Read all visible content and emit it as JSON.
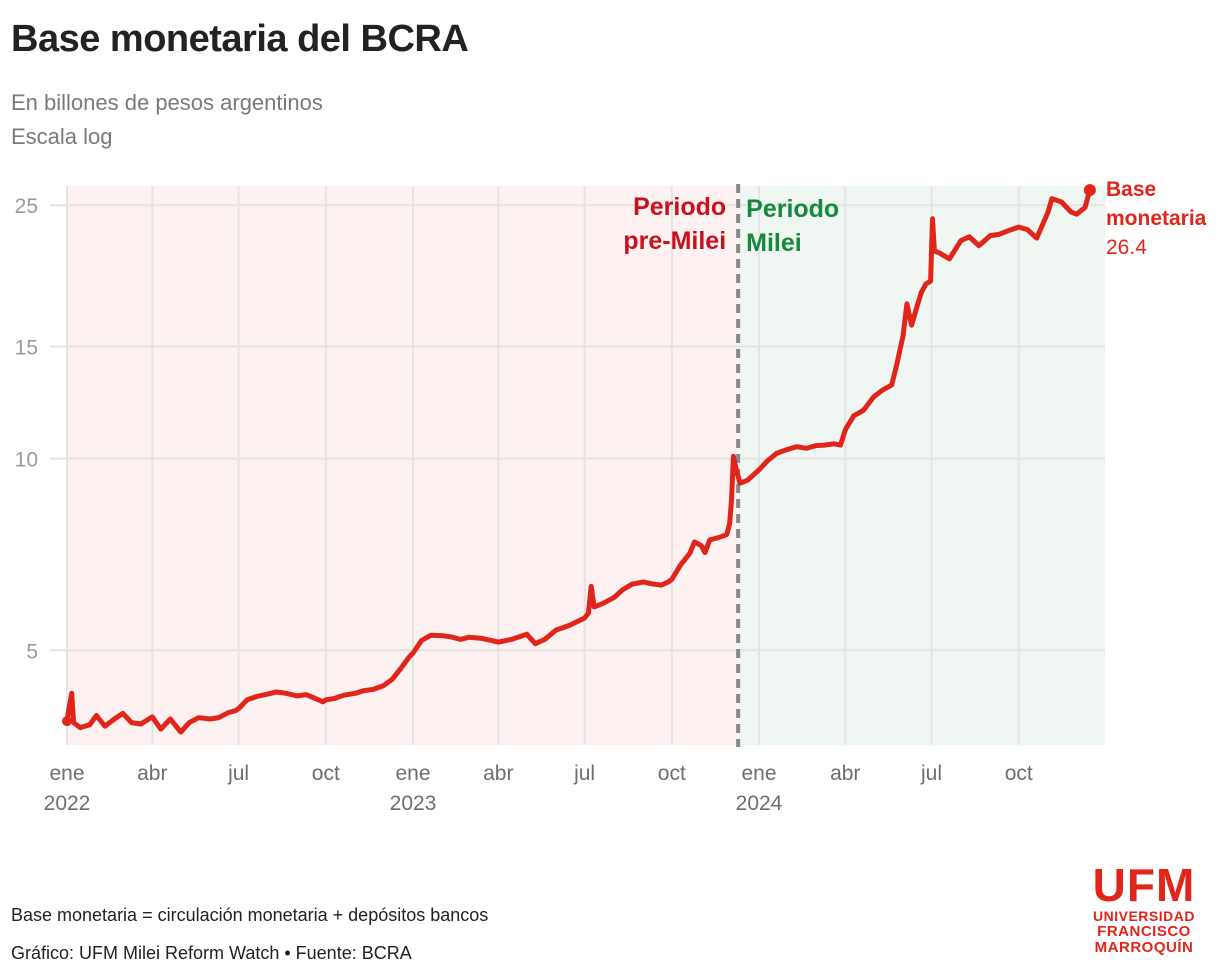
{
  "header": {
    "title": "Base monetaria del BCRA",
    "subtitle_line1": "En billones de pesos argentinos",
    "subtitle_line2": "Escala log"
  },
  "footer": {
    "note": "Base monetaria = circulación monetaria + depósitos bancos",
    "credit": "Gráfico: UFM Milei Reform Watch • Fuente: BCRA"
  },
  "logo": {
    "name": "UFM",
    "line1": "UNIVERSIDAD",
    "line2": "FRANCISCO",
    "line3": "MARROQUÍN"
  },
  "colors": {
    "series": "#e1251b",
    "pre_milei_bg": "#fdf1f1",
    "milei_bg": "#f0f6f2",
    "pre_milei_label": "#c8101e",
    "milei_label": "#138a3c",
    "divider": "#888888",
    "grid": "#e4e4e4",
    "tick_text": "#9a9a9a"
  },
  "chart_data": {
    "type": "line",
    "scale": "log",
    "title": "Base monetaria del BCRA",
    "ylabel": "En billones de pesos argentinos",
    "ylim": [
      3.55,
      26.8
    ],
    "yticks": [
      5,
      10,
      15,
      25
    ],
    "xlim": [
      "2022-01-01",
      "2024-12-31"
    ],
    "xticks": [
      {
        "date": "2022-01-01",
        "label": "ene",
        "year": "2022"
      },
      {
        "date": "2022-04-01",
        "label": "abr",
        "year": ""
      },
      {
        "date": "2022-07-01",
        "label": "jul",
        "year": ""
      },
      {
        "date": "2022-10-01",
        "label": "oct",
        "year": ""
      },
      {
        "date": "2023-01-01",
        "label": "ene",
        "year": "2023"
      },
      {
        "date": "2023-04-01",
        "label": "abr",
        "year": ""
      },
      {
        "date": "2023-07-01",
        "label": "jul",
        "year": ""
      },
      {
        "date": "2023-10-01",
        "label": "oct",
        "year": ""
      },
      {
        "date": "2024-01-01",
        "label": "ene",
        "year": "2024"
      },
      {
        "date": "2024-04-01",
        "label": "abr",
        "year": ""
      },
      {
        "date": "2024-07-01",
        "label": "jul",
        "year": ""
      },
      {
        "date": "2024-10-01",
        "label": "oct",
        "year": ""
      }
    ],
    "regions": [
      {
        "label": [
          "Periodo",
          "pre-Milei"
        ],
        "start": "2022-01-01",
        "end": "2023-12-10"
      },
      {
        "label": [
          "Periodo",
          "Milei"
        ],
        "start": "2023-12-10",
        "end": "2024-12-31"
      }
    ],
    "divider_date": "2023-12-10",
    "series": [
      {
        "name": "Base monetaria",
        "last_value_label": "26.4",
        "last_value": 26.4,
        "points": [
          [
            "2022-01-01",
            3.87
          ],
          [
            "2022-01-03",
            4.05
          ],
          [
            "2022-01-06",
            4.28
          ],
          [
            "2022-01-08",
            3.85
          ],
          [
            "2022-01-15",
            3.78
          ],
          [
            "2022-01-25",
            3.82
          ],
          [
            "2022-02-01",
            3.95
          ],
          [
            "2022-02-10",
            3.8
          ],
          [
            "2022-02-20",
            3.9
          ],
          [
            "2022-03-01",
            3.98
          ],
          [
            "2022-03-10",
            3.85
          ],
          [
            "2022-03-20",
            3.83
          ],
          [
            "2022-04-01",
            3.93
          ],
          [
            "2022-04-10",
            3.76
          ],
          [
            "2022-04-20",
            3.9
          ],
          [
            "2022-05-01",
            3.72
          ],
          [
            "2022-05-10",
            3.85
          ],
          [
            "2022-05-20",
            3.92
          ],
          [
            "2022-06-01",
            3.9
          ],
          [
            "2022-06-10",
            3.92
          ],
          [
            "2022-06-20",
            3.99
          ],
          [
            "2022-06-28",
            4.02
          ],
          [
            "2022-07-01",
            4.05
          ],
          [
            "2022-07-10",
            4.18
          ],
          [
            "2022-07-20",
            4.23
          ],
          [
            "2022-08-01",
            4.27
          ],
          [
            "2022-08-10",
            4.3
          ],
          [
            "2022-08-20",
            4.28
          ],
          [
            "2022-09-01",
            4.24
          ],
          [
            "2022-09-10",
            4.26
          ],
          [
            "2022-09-20",
            4.2
          ],
          [
            "2022-09-28",
            4.15
          ],
          [
            "2022-10-01",
            4.18
          ],
          [
            "2022-10-10",
            4.2
          ],
          [
            "2022-10-20",
            4.25
          ],
          [
            "2022-11-01",
            4.28
          ],
          [
            "2022-11-10",
            4.32
          ],
          [
            "2022-11-20",
            4.34
          ],
          [
            "2022-12-01",
            4.4
          ],
          [
            "2022-12-10",
            4.5
          ],
          [
            "2022-12-20",
            4.7
          ],
          [
            "2022-12-28",
            4.88
          ],
          [
            "2023-01-01",
            4.95
          ],
          [
            "2023-01-10",
            5.18
          ],
          [
            "2023-01-20",
            5.28
          ],
          [
            "2023-02-01",
            5.27
          ],
          [
            "2023-02-10",
            5.25
          ],
          [
            "2023-02-20",
            5.2
          ],
          [
            "2023-03-01",
            5.24
          ],
          [
            "2023-03-15",
            5.22
          ],
          [
            "2023-04-01",
            5.15
          ],
          [
            "2023-04-15",
            5.2
          ],
          [
            "2023-05-01",
            5.3
          ],
          [
            "2023-05-10",
            5.12
          ],
          [
            "2023-05-20",
            5.2
          ],
          [
            "2023-06-01",
            5.38
          ],
          [
            "2023-06-15",
            5.47
          ],
          [
            "2023-07-01",
            5.62
          ],
          [
            "2023-07-05",
            5.72
          ],
          [
            "2023-07-08",
            6.3
          ],
          [
            "2023-07-11",
            5.85
          ],
          [
            "2023-07-20",
            5.92
          ],
          [
            "2023-08-01",
            6.05
          ],
          [
            "2023-08-10",
            6.22
          ],
          [
            "2023-08-20",
            6.35
          ],
          [
            "2023-09-01",
            6.4
          ],
          [
            "2023-09-10",
            6.36
          ],
          [
            "2023-09-20",
            6.33
          ],
          [
            "2023-09-28",
            6.41
          ],
          [
            "2023-10-01",
            6.46
          ],
          [
            "2023-10-10",
            6.8
          ],
          [
            "2023-10-20",
            7.1
          ],
          [
            "2023-10-25",
            7.4
          ],
          [
            "2023-11-01",
            7.3
          ],
          [
            "2023-11-05",
            7.12
          ],
          [
            "2023-11-10",
            7.45
          ],
          [
            "2023-11-20",
            7.52
          ],
          [
            "2023-11-28",
            7.6
          ],
          [
            "2023-12-01",
            7.9
          ],
          [
            "2023-12-03",
            8.6
          ],
          [
            "2023-12-05",
            10.08
          ],
          [
            "2023-12-08",
            9.62
          ],
          [
            "2023-12-12",
            9.15
          ],
          [
            "2023-12-20",
            9.25
          ],
          [
            "2024-01-01",
            9.6
          ],
          [
            "2024-01-10",
            9.92
          ],
          [
            "2024-01-20",
            10.2
          ],
          [
            "2024-02-01",
            10.35
          ],
          [
            "2024-02-10",
            10.44
          ],
          [
            "2024-02-20",
            10.38
          ],
          [
            "2024-03-01",
            10.48
          ],
          [
            "2024-03-10",
            10.5
          ],
          [
            "2024-03-20",
            10.55
          ],
          [
            "2024-03-27",
            10.5
          ],
          [
            "2024-04-01",
            11.1
          ],
          [
            "2024-04-10",
            11.68
          ],
          [
            "2024-04-20",
            11.9
          ],
          [
            "2024-05-01",
            12.5
          ],
          [
            "2024-05-10",
            12.8
          ],
          [
            "2024-05-20",
            13.05
          ],
          [
            "2024-05-25",
            14.0
          ],
          [
            "2024-06-01",
            15.6
          ],
          [
            "2024-06-05",
            17.5
          ],
          [
            "2024-06-10",
            16.2
          ],
          [
            "2024-06-15",
            17.2
          ],
          [
            "2024-06-20",
            18.2
          ],
          [
            "2024-06-25",
            18.8
          ],
          [
            "2024-06-30",
            19.0
          ],
          [
            "2024-07-02",
            23.8
          ],
          [
            "2024-07-04",
            21.2
          ],
          [
            "2024-07-10",
            21.0
          ],
          [
            "2024-07-20",
            20.6
          ],
          [
            "2024-08-01",
            22.0
          ],
          [
            "2024-08-10",
            22.3
          ],
          [
            "2024-08-20",
            21.6
          ],
          [
            "2024-09-01",
            22.4
          ],
          [
            "2024-09-10",
            22.5
          ],
          [
            "2024-09-20",
            22.8
          ],
          [
            "2024-10-01",
            23.1
          ],
          [
            "2024-10-10",
            22.9
          ],
          [
            "2024-10-20",
            22.2
          ],
          [
            "2024-11-01",
            24.4
          ],
          [
            "2024-11-05",
            25.6
          ],
          [
            "2024-11-15",
            25.3
          ],
          [
            "2024-11-25",
            24.4
          ],
          [
            "2024-12-01",
            24.2
          ],
          [
            "2024-12-10",
            24.8
          ],
          [
            "2024-12-15",
            26.4
          ]
        ]
      }
    ]
  }
}
